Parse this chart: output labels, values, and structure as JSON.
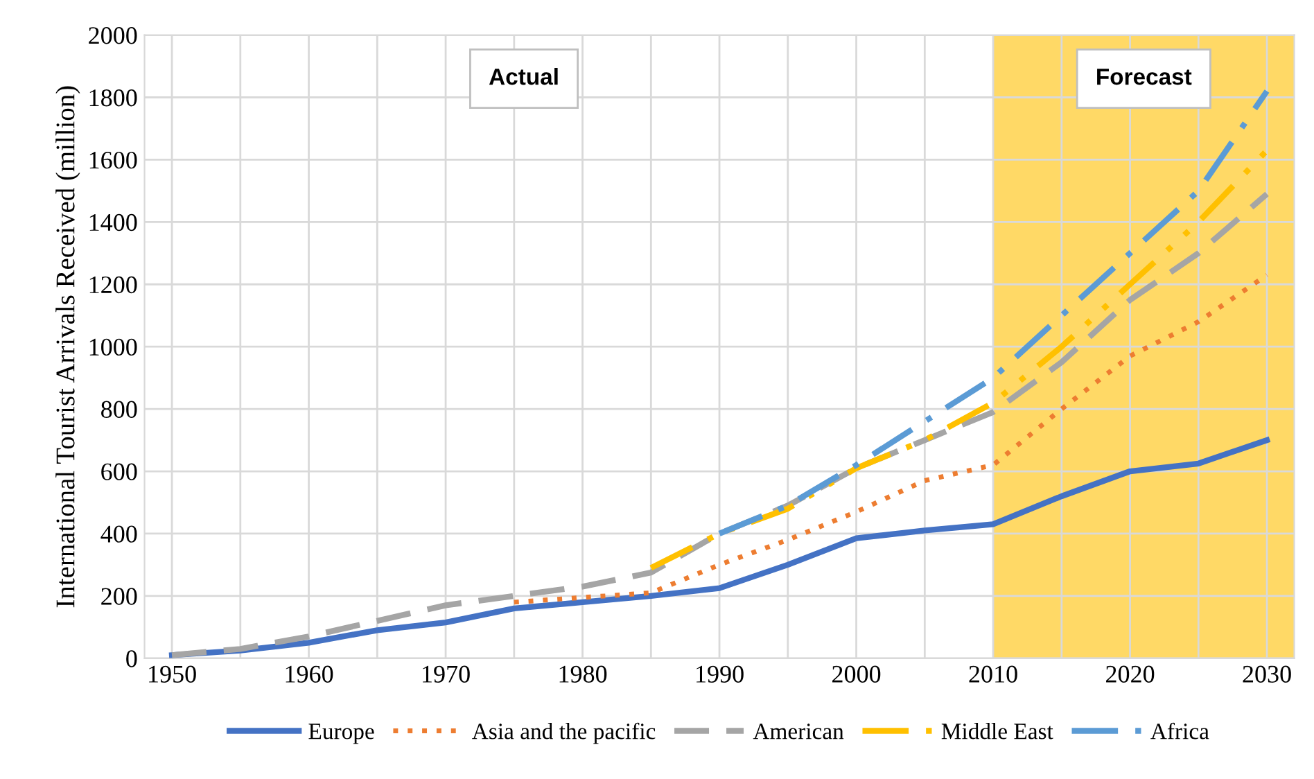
{
  "chart_data": {
    "type": "line",
    "ylabel": "International Tourist Arrivals Received (million)",
    "xlim": [
      1948,
      2032
    ],
    "ylim": [
      0,
      2000
    ],
    "xticks": [
      1950,
      {
        "value": 1955,
        "label": null
      },
      1960,
      {
        "value": 1965,
        "label": null
      },
      1970,
      {
        "value": 1975,
        "label": null
      },
      1980,
      {
        "value": 1985,
        "label": null
      },
      1990,
      {
        "value": 1995,
        "label": null
      },
      2000,
      {
        "value": 2005,
        "label": null
      },
      2010,
      {
        "value": 2015,
        "label": null
      },
      2020,
      {
        "value": 2025,
        "label": null
      },
      2030
    ],
    "yticks": [
      0,
      200,
      400,
      600,
      800,
      1000,
      1200,
      1400,
      1600,
      1800,
      2000
    ],
    "grid": true,
    "legend": "bottom",
    "marker": "none",
    "annotations": [
      "Actual"
    ],
    "bands": [
      {
        "axis": "x",
        "from": 2010,
        "to": 2032,
        "label": "Forecast",
        "color": "#ffd966"
      }
    ],
    "series": [
      {
        "name": "Europe",
        "color": "#4472c4",
        "line_style": "solid",
        "x": [
          1950,
          1955,
          1960,
          1965,
          1970,
          1975,
          1980,
          1985,
          1990,
          1995,
          2000,
          2005,
          2010,
          2015,
          2020,
          2025,
          2030
        ],
        "values": [
          10,
          25,
          50,
          90,
          115,
          160,
          180,
          200,
          225,
          300,
          385,
          410,
          430,
          520,
          600,
          625,
          700
        ]
      },
      {
        "name": "Asia and the pacific",
        "color": "#ed7d31",
        "line_style": "dotted",
        "x": [
          1975,
          1980,
          1985,
          1990,
          1995,
          2000,
          2005,
          2010,
          2015,
          2020,
          2025,
          2030
        ],
        "values": [
          180,
          195,
          210,
          300,
          380,
          470,
          570,
          620,
          800,
          970,
          1080,
          1230
        ]
      },
      {
        "name": "American",
        "color": "#a5a5a5",
        "line_style": "dashed",
        "x": [
          1950,
          1955,
          1960,
          1965,
          1970,
          1975,
          1980,
          1985,
          1990,
          1995,
          2000,
          2005,
          2010,
          2015,
          2020,
          2025,
          2030
        ],
        "values": [
          10,
          30,
          70,
          120,
          170,
          200,
          230,
          275,
          400,
          490,
          610,
          700,
          790,
          950,
          1150,
          1300,
          1490
        ]
      },
      {
        "name": "Middle East",
        "color": "#ffc000",
        "line_style": "dashdotdot",
        "x": [
          1985,
          1990,
          1995,
          2000,
          2005,
          2010,
          2015,
          2020,
          2025,
          2030
        ],
        "values": [
          290,
          400,
          480,
          610,
          700,
          820,
          1000,
          1200,
          1400,
          1630
        ]
      },
      {
        "name": "Africa",
        "color": "#5b9bd5",
        "line_style": "dashdot",
        "x": [
          1990,
          1995,
          2000,
          2005,
          2010,
          2015,
          2020,
          2025,
          2030
        ],
        "values": [
          400,
          490,
          620,
          760,
          900,
          1100,
          1300,
          1500,
          1820
        ]
      }
    ]
  }
}
